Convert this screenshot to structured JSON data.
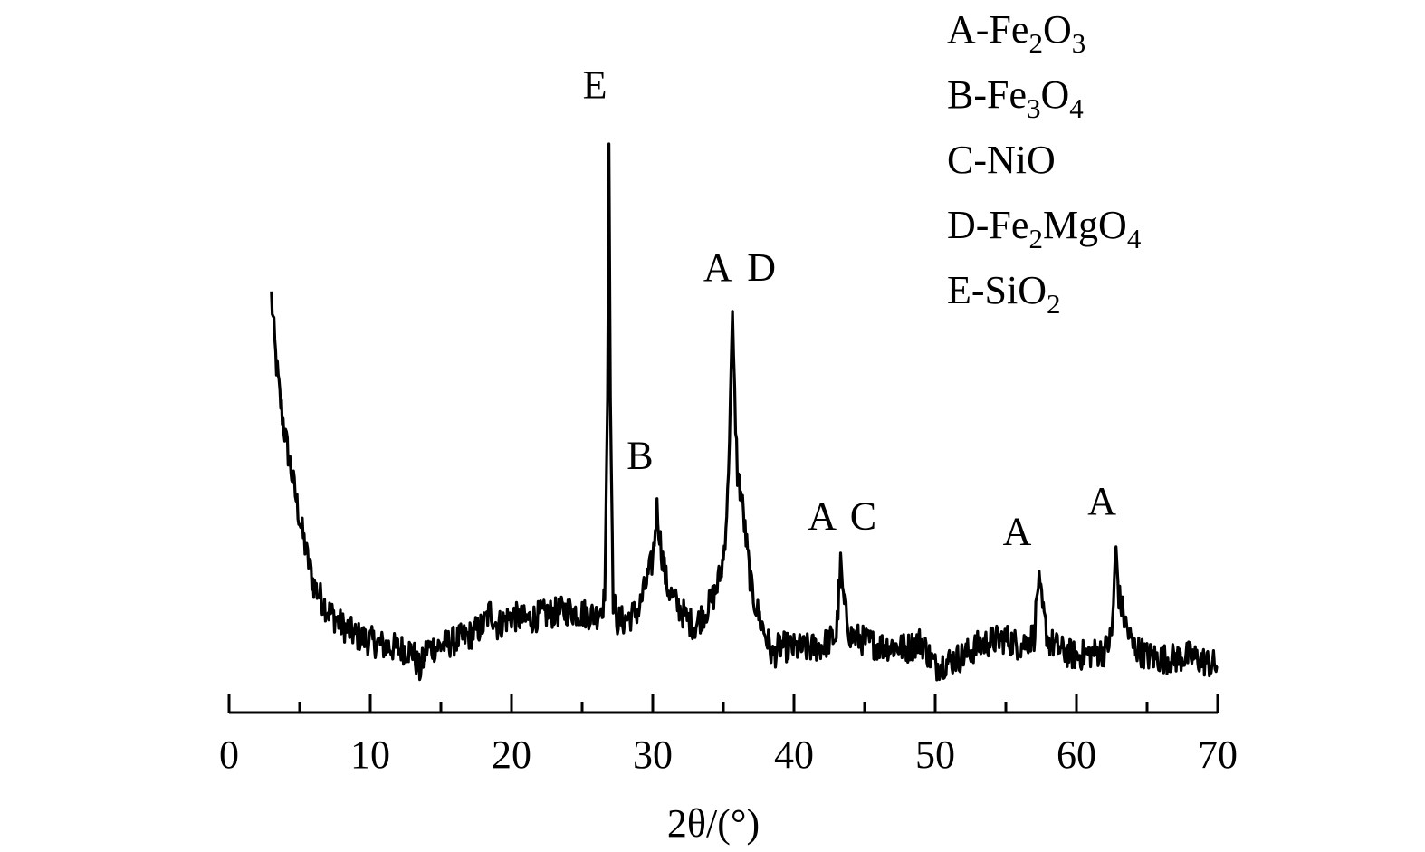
{
  "chart_data": {
    "type": "line",
    "title": "",
    "xlabel": "2θ/(°)",
    "ylabel": "",
    "xlim": [
      0,
      70
    ],
    "x_ticks": [
      0,
      10,
      20,
      30,
      40,
      50,
      60,
      70
    ],
    "x_tick_labels": [
      "0",
      "10",
      "20",
      "30",
      "40",
      "50",
      "60",
      "70"
    ],
    "y_axis_visible": false,
    "grid": false,
    "line_color": "#000000",
    "series": [
      {
        "points": [
          [
            3.0,
            100
          ],
          [
            3.3,
            88
          ],
          [
            3.6,
            80
          ],
          [
            4.0,
            72
          ],
          [
            4.5,
            64
          ],
          [
            5.0,
            56
          ],
          [
            5.5,
            49
          ],
          [
            6.0,
            43
          ],
          [
            7.0,
            38
          ],
          [
            8.0,
            35
          ],
          [
            9.0,
            33
          ],
          [
            10.0,
            32
          ],
          [
            11.0,
            31
          ],
          [
            12.0,
            30.5
          ],
          [
            13.0,
            30
          ],
          [
            13.5,
            26
          ],
          [
            14.0,
            30.5
          ],
          [
            15.0,
            31
          ],
          [
            16.0,
            32
          ],
          [
            17.0,
            33
          ],
          [
            18.0,
            35
          ],
          [
            18.5,
            38
          ],
          [
            19.0,
            35
          ],
          [
            20.0,
            37
          ],
          [
            21.0,
            36
          ],
          [
            22.0,
            37
          ],
          [
            23.0,
            37.5
          ],
          [
            24.0,
            38
          ],
          [
            25.0,
            37.5
          ],
          [
            26.0,
            37
          ],
          [
            26.6,
            40
          ],
          [
            26.8,
            80
          ],
          [
            26.9,
            130
          ],
          [
            27.0,
            80
          ],
          [
            27.2,
            40
          ],
          [
            27.5,
            36
          ],
          [
            28.0,
            36
          ],
          [
            28.5,
            37
          ],
          [
            29.0,
            38
          ],
          [
            29.5,
            43
          ],
          [
            30.0,
            48
          ],
          [
            30.3,
            58
          ],
          [
            30.6,
            50
          ],
          [
            31.0,
            43
          ],
          [
            31.5,
            40
          ],
          [
            32.0,
            38
          ],
          [
            32.5,
            36
          ],
          [
            33.0,
            35
          ],
          [
            33.5,
            37
          ],
          [
            34.0,
            39
          ],
          [
            34.5,
            42
          ],
          [
            35.0,
            48
          ],
          [
            35.3,
            60
          ],
          [
            35.5,
            80
          ],
          [
            35.65,
            95
          ],
          [
            35.8,
            80
          ],
          [
            36.0,
            65
          ],
          [
            36.3,
            60
          ],
          [
            36.6,
            52
          ],
          [
            37.0,
            42
          ],
          [
            37.5,
            37
          ],
          [
            38.0,
            33
          ],
          [
            38.5,
            29
          ],
          [
            39.0,
            31
          ],
          [
            40.0,
            30.5
          ],
          [
            41.0,
            30.5
          ],
          [
            42.0,
            31
          ],
          [
            43.0,
            33
          ],
          [
            43.3,
            47
          ],
          [
            43.5,
            40
          ],
          [
            44.0,
            33
          ],
          [
            45.0,
            32
          ],
          [
            46.0,
            31
          ],
          [
            47.0,
            31
          ],
          [
            48.0,
            30.5
          ],
          [
            49.0,
            32
          ],
          [
            50.0,
            27
          ],
          [
            51.0,
            28
          ],
          [
            52.0,
            29
          ],
          [
            53.0,
            31
          ],
          [
            54.0,
            32
          ],
          [
            55.0,
            32.5
          ],
          [
            56.0,
            31
          ],
          [
            57.0,
            33
          ],
          [
            57.3,
            44
          ],
          [
            57.6,
            38
          ],
          [
            58.0,
            32
          ],
          [
            59.0,
            30
          ],
          [
            60.0,
            29
          ],
          [
            61.0,
            29.5
          ],
          [
            62.0,
            30
          ],
          [
            62.5,
            33
          ],
          [
            62.8,
            50
          ],
          [
            63.0,
            41
          ],
          [
            63.5,
            35
          ],
          [
            64.0,
            31
          ],
          [
            65.0,
            29
          ],
          [
            66.0,
            28.5
          ],
          [
            67.0,
            28.5
          ],
          [
            68.0,
            29
          ],
          [
            69.0,
            28
          ],
          [
            70.0,
            27
          ]
        ]
      }
    ],
    "peak_annotations": [
      {
        "x": 25.9,
        "y": 139,
        "text": "E"
      },
      {
        "x": 29.1,
        "y": 66,
        "text": "B"
      },
      {
        "x": 34.6,
        "y": 103,
        "text": "A"
      },
      {
        "x": 37.7,
        "y": 103,
        "text": "D"
      },
      {
        "x": 42.0,
        "y": 54,
        "text": "A"
      },
      {
        "x": 44.9,
        "y": 54,
        "text": "C"
      },
      {
        "x": 55.8,
        "y": 51,
        "text": "A"
      },
      {
        "x": 61.8,
        "y": 57,
        "text": "A"
      }
    ],
    "legend": {
      "position": "top-right",
      "entries": [
        {
          "prefix": "A-Fe",
          "parts": [
            [
              "2",
              "O"
            ],
            [
              "3",
              ""
            ]
          ]
        },
        {
          "prefix": "B-Fe",
          "parts": [
            [
              "3",
              "O"
            ],
            [
              "4",
              ""
            ]
          ]
        },
        {
          "prefix": "C-NiO",
          "parts": []
        },
        {
          "prefix": "D-Fe",
          "parts": [
            [
              "2",
              "MgO"
            ],
            [
              "4",
              ""
            ]
          ]
        },
        {
          "prefix": "E-SiO",
          "parts": [
            [
              "2",
              ""
            ]
          ]
        }
      ]
    }
  }
}
